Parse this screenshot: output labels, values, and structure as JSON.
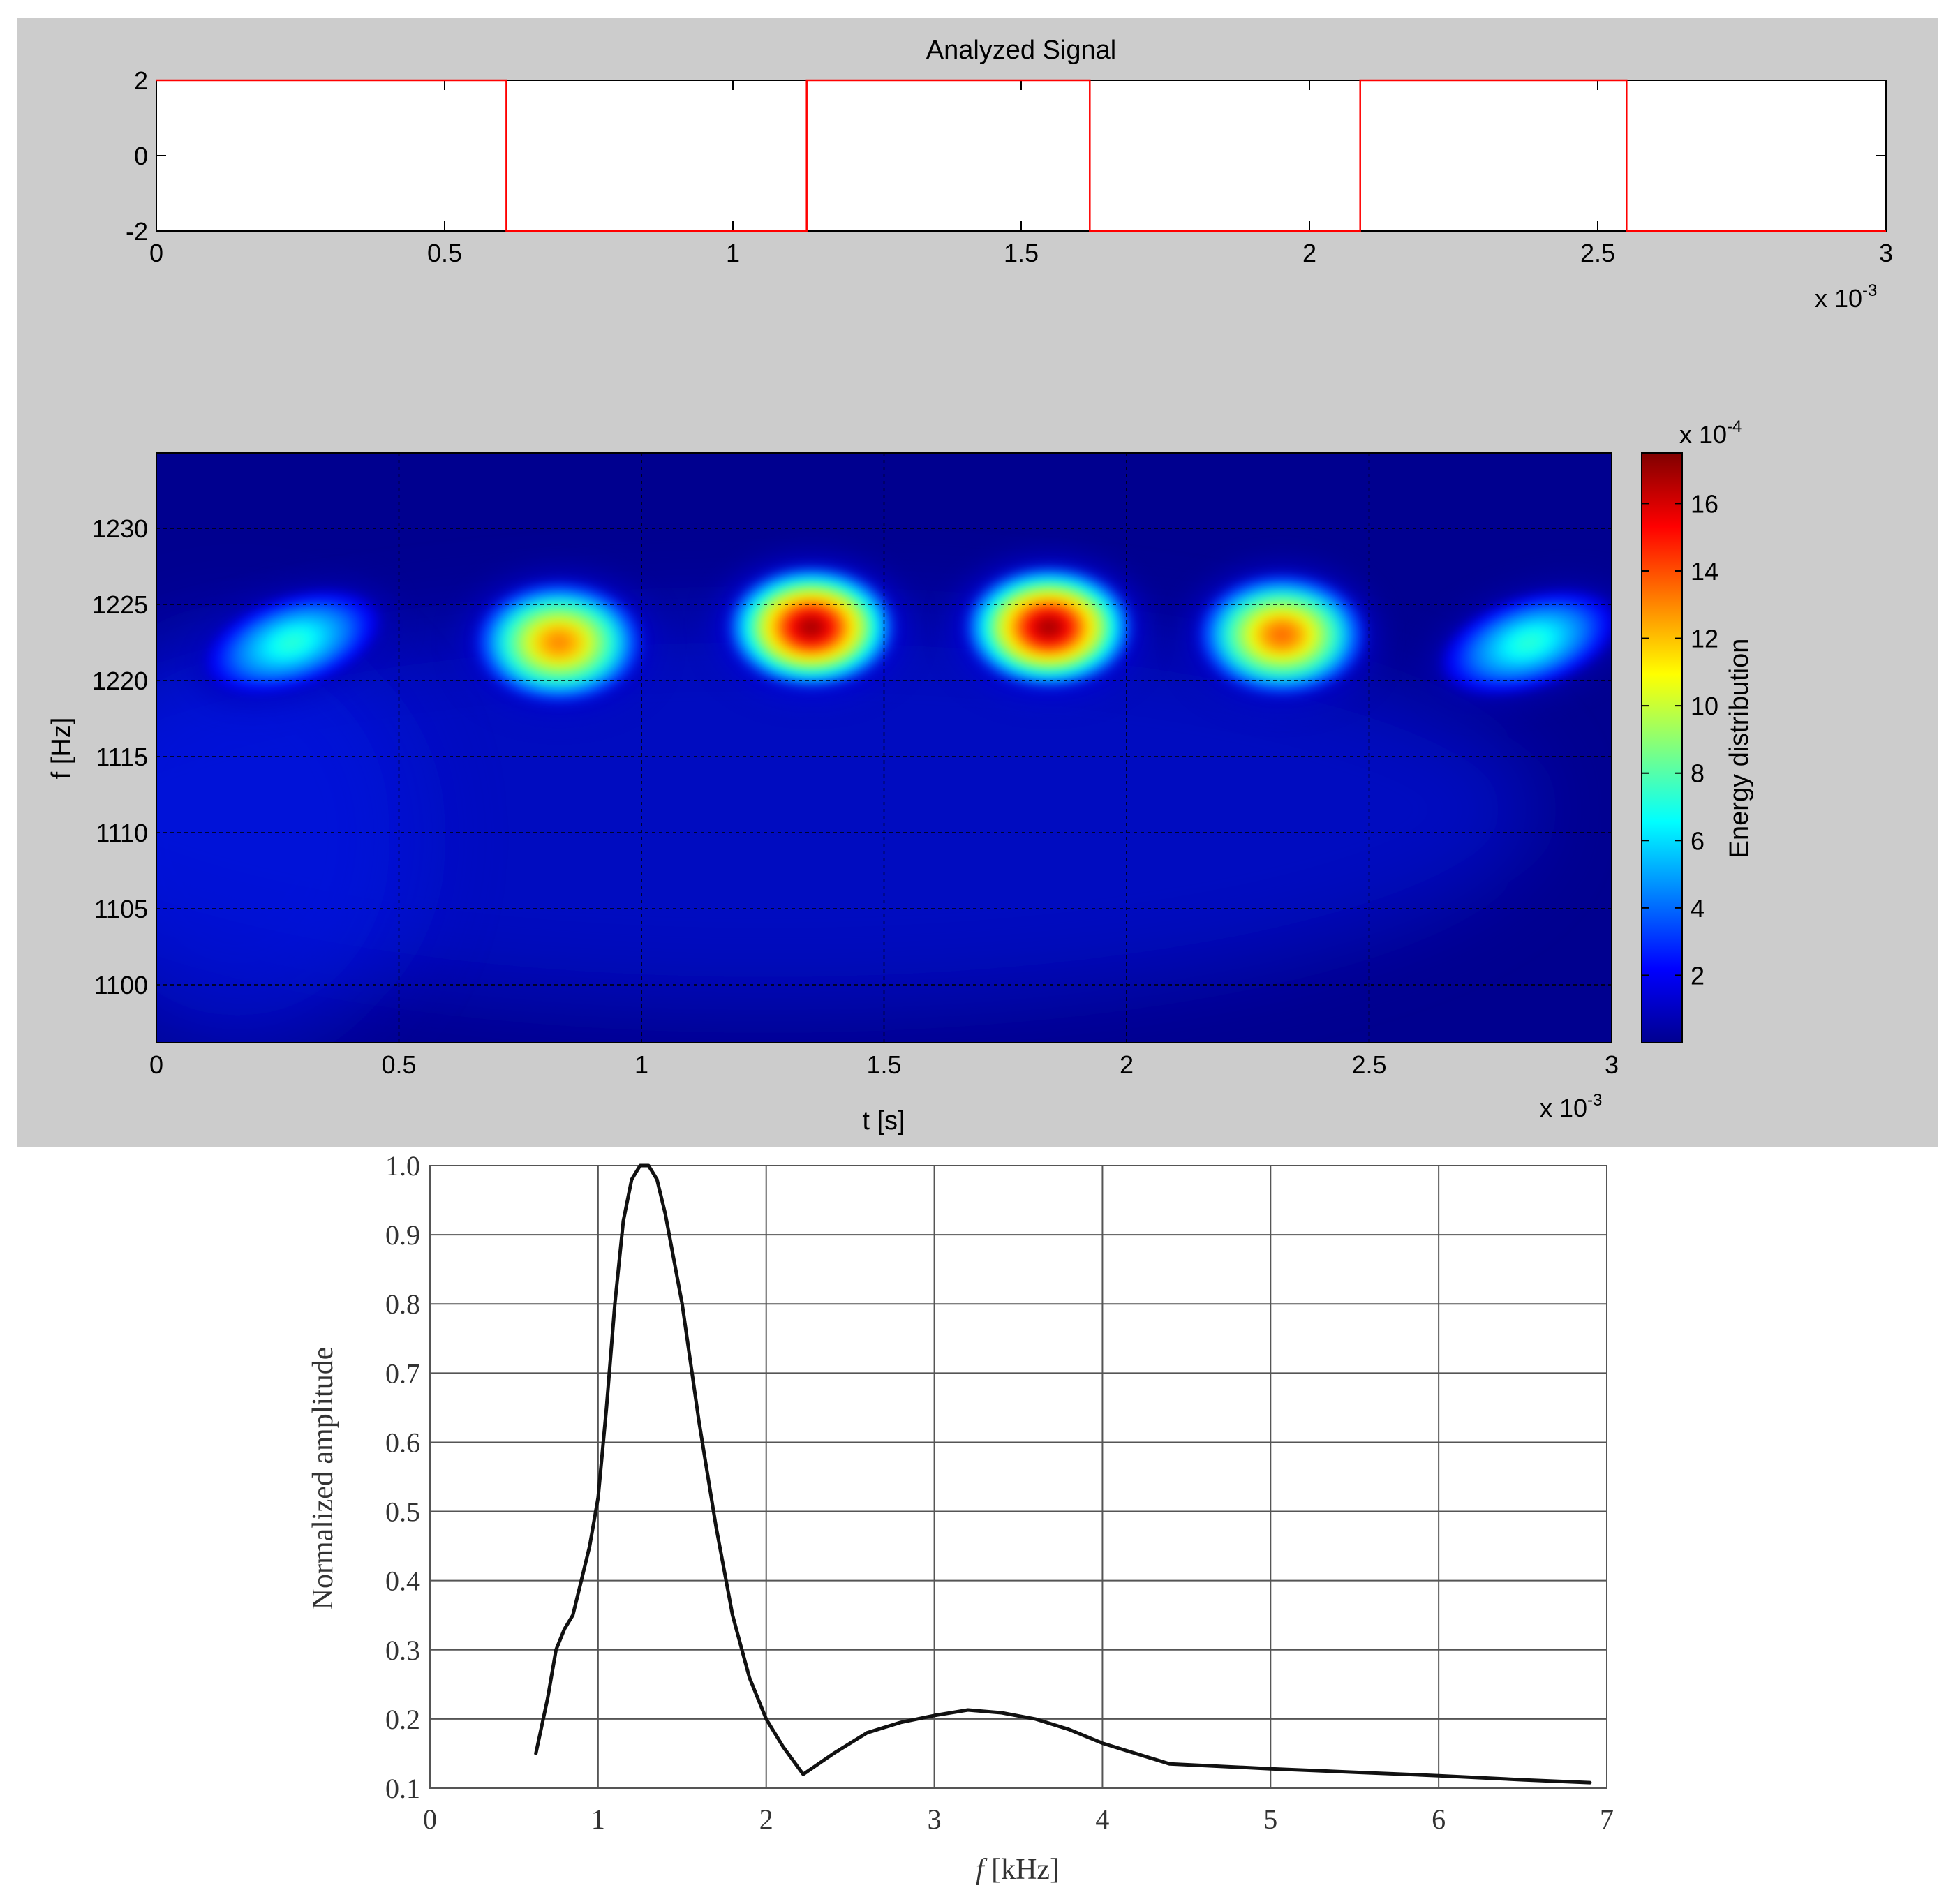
{
  "colors": {
    "panel_background": "#cccccc",
    "signal_line": "#ff0000",
    "spectrum_line": "#111111",
    "grid": "#000000",
    "colormap": "jet"
  },
  "chart_data": [
    {
      "type": "line",
      "title": "Analyzed Signal",
      "xlabel": "",
      "ylabel": "",
      "x_multiplier": "x 10",
      "x_multiplier_exp": "-3",
      "xlim": [
        0,
        3
      ],
      "ylim": [
        -2,
        2
      ],
      "xticks": [
        "0",
        "0.5",
        "1",
        "1.5",
        "2",
        "2.5",
        "3"
      ],
      "yticks": [
        "-2",
        "0",
        "2"
      ],
      "grid": false,
      "series": [
        {
          "x": [
            0,
            0.607,
            0.607,
            1.128,
            1.128,
            1.619,
            1.619,
            2.088,
            2.088,
            2.55,
            2.55,
            3
          ],
          "y": [
            2,
            2,
            -2,
            -2,
            2,
            2,
            -2,
            -2,
            2,
            2,
            -2,
            -2
          ]
        }
      ]
    },
    {
      "type": "heatmap",
      "title": "",
      "xlabel": "t [s]",
      "ylabel": "f [Hz]",
      "x_multiplier": "x 10",
      "x_multiplier_exp": "-3",
      "xlim": [
        0,
        3
      ],
      "xticks": [
        "0",
        "0.5",
        "1",
        "1.5",
        "2",
        "2.5",
        "3"
      ],
      "yticks": [
        "1100",
        "1105",
        "1110",
        "1115",
        "1220",
        "1225",
        "1230"
      ],
      "grid": true,
      "colorbar": {
        "label": "Energy distribution",
        "multiplier": "x 10",
        "multiplier_exp": "-4",
        "range": [
          0,
          17.5
        ],
        "ticks": [
          "2",
          "4",
          "6",
          "8",
          "10",
          "12",
          "14",
          "16"
        ]
      },
      "blobs": [
        {
          "t": 0.28,
          "f": 1222.5,
          "peak": 7.0
        },
        {
          "t": 0.83,
          "f": 1222.5,
          "peak": 13.0
        },
        {
          "t": 1.35,
          "f": 1223.5,
          "peak": 17.0
        },
        {
          "t": 1.84,
          "f": 1223.5,
          "peak": 17.0
        },
        {
          "t": 2.32,
          "f": 1223.0,
          "peak": 13.5
        },
        {
          "t": 2.83,
          "f": 1222.5,
          "peak": 7.0
        }
      ]
    },
    {
      "type": "line",
      "title": "",
      "xlabel": "f [kHz]",
      "ylabel": "Normalized amplitude",
      "xlim": [
        0,
        7
      ],
      "ylim": [
        0.1,
        1.0
      ],
      "xticks": [
        "0",
        "1",
        "2",
        "3",
        "4",
        "5",
        "6",
        "7"
      ],
      "yticks": [
        "0.1",
        "0.2",
        "0.3",
        "0.4",
        "0.5",
        "0.6",
        "0.7",
        "0.8",
        "0.9",
        "1.0"
      ],
      "grid": true,
      "series": [
        {
          "x": [
            0.63,
            0.7,
            0.75,
            0.8,
            0.85,
            0.9,
            0.95,
            1.0,
            1.05,
            1.1,
            1.15,
            1.2,
            1.25,
            1.3,
            1.35,
            1.4,
            1.5,
            1.6,
            1.7,
            1.8,
            1.9,
            2.0,
            2.1,
            2.22,
            2.4,
            2.6,
            2.8,
            3.0,
            3.2,
            3.4,
            3.6,
            3.8,
            4.0,
            4.4,
            5.0,
            5.5,
            6.0,
            6.5,
            6.9
          ],
          "y": [
            0.15,
            0.23,
            0.3,
            0.33,
            0.35,
            0.4,
            0.45,
            0.52,
            0.65,
            0.8,
            0.92,
            0.98,
            1.0,
            1.0,
            0.98,
            0.93,
            0.8,
            0.63,
            0.48,
            0.35,
            0.26,
            0.2,
            0.16,
            0.12,
            0.15,
            0.18,
            0.195,
            0.205,
            0.213,
            0.209,
            0.2,
            0.185,
            0.165,
            0.135,
            0.128,
            0.123,
            0.118,
            0.112,
            0.108
          ]
        }
      ]
    }
  ]
}
